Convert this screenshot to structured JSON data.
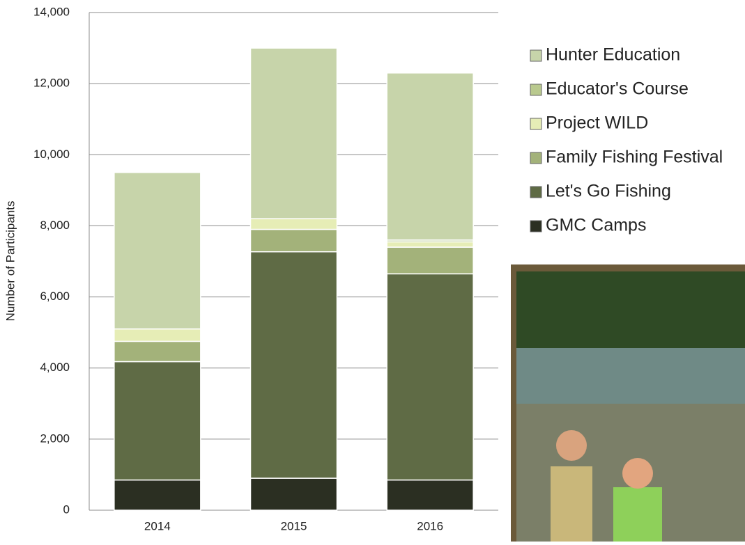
{
  "chart_data": {
    "type": "stacked-bar",
    "y_label": "Number of Participants",
    "categories": [
      "2014",
      "2015",
      "2016"
    ],
    "series": [
      {
        "name": "GMC Camps",
        "color": "#2b2f22",
        "values": [
          850,
          900,
          850
        ]
      },
      {
        "name": "Let's Go Fishing",
        "color": "#5f6b45",
        "values": [
          3330,
          6370,
          5800
        ]
      },
      {
        "name": "Family Fishing Festival",
        "color": "#a3b27a",
        "values": [
          570,
          630,
          750
        ]
      },
      {
        "name": "Project WILD",
        "color": "#e6edb6",
        "values": [
          350,
          300,
          150
        ]
      },
      {
        "name": "Educator's Course",
        "color": "#b9c98e",
        "values": [
          0,
          0,
          50
        ]
      },
      {
        "name": "Hunter Education",
        "color": "#c7d4aa",
        "values": [
          4400,
          4800,
          4700
        ]
      }
    ],
    "ylim": [
      0,
      14000
    ],
    "yticks": [
      0,
      {
        "value": 2000,
        "label": "2,000"
      },
      {
        "value": 4000,
        "label": "4,000"
      },
      {
        "value": 6000,
        "label": "6,000"
      },
      {
        "value": 8000,
        "label": "8,000"
      },
      {
        "value": 10000,
        "label": "10,000"
      },
      {
        "value": 12000,
        "label": "12,000"
      },
      {
        "value": 14000,
        "label": "14,000"
      }
    ],
    "grid": true
  }
}
